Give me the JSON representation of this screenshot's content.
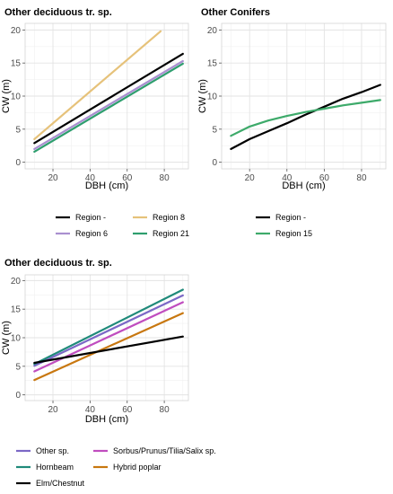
{
  "chart_data": [
    {
      "type": "line",
      "title": "Other deciduous tr. sp.",
      "xlabel": "DBH (cm)",
      "ylabel": "CW (m)",
      "xlim": [
        5,
        93
      ],
      "ylim": [
        -1,
        21
      ],
      "xticks": [
        20,
        40,
        60,
        80
      ],
      "yticks": [
        0,
        5,
        10,
        15,
        20
      ],
      "grid": true,
      "legend_position": "bottom",
      "series": [
        {
          "name": "Region -",
          "color": "#000000",
          "x": [
            10,
            90
          ],
          "y": [
            2.9,
            16.4
          ]
        },
        {
          "name": "Region 8",
          "color": "#e6c27a",
          "x": [
            10,
            78
          ],
          "y": [
            3.5,
            19.8
          ]
        },
        {
          "name": "Region 6",
          "color": "#a98fd0",
          "x": [
            10,
            90
          ],
          "y": [
            2.0,
            15.3
          ]
        },
        {
          "name": "Region 21",
          "color": "#2e9e6e",
          "x": [
            10,
            90
          ],
          "y": [
            1.6,
            14.9
          ]
        }
      ]
    },
    {
      "type": "line",
      "title": "Other Conifers",
      "xlabel": "DBH (cm)",
      "ylabel": "CW (m)",
      "xlim": [
        5,
        93
      ],
      "ylim": [
        -1,
        21
      ],
      "xticks": [
        20,
        40,
        60,
        80
      ],
      "yticks": [
        0,
        5,
        10,
        15,
        20
      ],
      "grid": true,
      "legend_position": "bottom",
      "series": [
        {
          "name": "Region -",
          "color": "#000000",
          "x": [
            10,
            20,
            30,
            40,
            50,
            60,
            70,
            80,
            90
          ],
          "y": [
            2.0,
            3.5,
            4.7,
            5.9,
            7.2,
            8.4,
            9.6,
            10.6,
            11.7
          ]
        },
        {
          "name": "Region 15",
          "color": "#3daa6a",
          "x": [
            10,
            20,
            30,
            40,
            50,
            60,
            70,
            80,
            90
          ],
          "y": [
            4.0,
            5.4,
            6.3,
            7.0,
            7.6,
            8.1,
            8.6,
            9.0,
            9.4
          ]
        }
      ]
    },
    {
      "type": "line",
      "title": "Other deciduous tr. sp.",
      "xlabel": "DBH (cm)",
      "ylabel": "CW (m)",
      "xlim": [
        5,
        93
      ],
      "ylim": [
        -1,
        21
      ],
      "xticks": [
        20,
        40,
        60,
        80
      ],
      "yticks": [
        0,
        5,
        10,
        15,
        20
      ],
      "grid": true,
      "legend_position": "bottom",
      "series": [
        {
          "name": "Other sp.",
          "color": "#7b68c6",
          "x": [
            10,
            90
          ],
          "y": [
            5.1,
            17.4
          ]
        },
        {
          "name": "Sorbus/Prunus/Tilia/Salix sp.",
          "color": "#c04dbf",
          "x": [
            10,
            90
          ],
          "y": [
            4.1,
            16.2
          ]
        },
        {
          "name": "Hornbeam",
          "color": "#1f8a7a",
          "x": [
            10,
            90
          ],
          "y": [
            5.4,
            18.4
          ]
        },
        {
          "name": "Hybrid poplar",
          "color": "#c8770f",
          "x": [
            10,
            90
          ],
          "y": [
            2.6,
            14.3
          ]
        },
        {
          "name": "Elm/Chestnut",
          "color": "#000000",
          "x": [
            10,
            90
          ],
          "y": [
            5.6,
            10.2
          ]
        }
      ]
    }
  ],
  "legends": [
    [
      {
        "label": "Region -",
        "color": "#000000"
      },
      {
        "label": "Region 8",
        "color": "#e6c27a"
      },
      {
        "label": "Region 6",
        "color": "#a98fd0"
      },
      {
        "label": "Region 21",
        "color": "#2e9e6e"
      }
    ],
    [
      {
        "label": "Region -",
        "color": "#000000"
      },
      {
        "label": "Region 15",
        "color": "#3daa6a"
      }
    ],
    [
      {
        "label": "Other sp.",
        "color": "#7b68c6"
      },
      {
        "label": "Sorbus/Prunus/Tilia/Salix sp.",
        "color": "#c04dbf"
      },
      {
        "label": "Hornbeam",
        "color": "#1f8a7a"
      },
      {
        "label": "Hybrid poplar",
        "color": "#c8770f"
      },
      {
        "label": "Elm/Chestnut",
        "color": "#000000"
      }
    ]
  ]
}
